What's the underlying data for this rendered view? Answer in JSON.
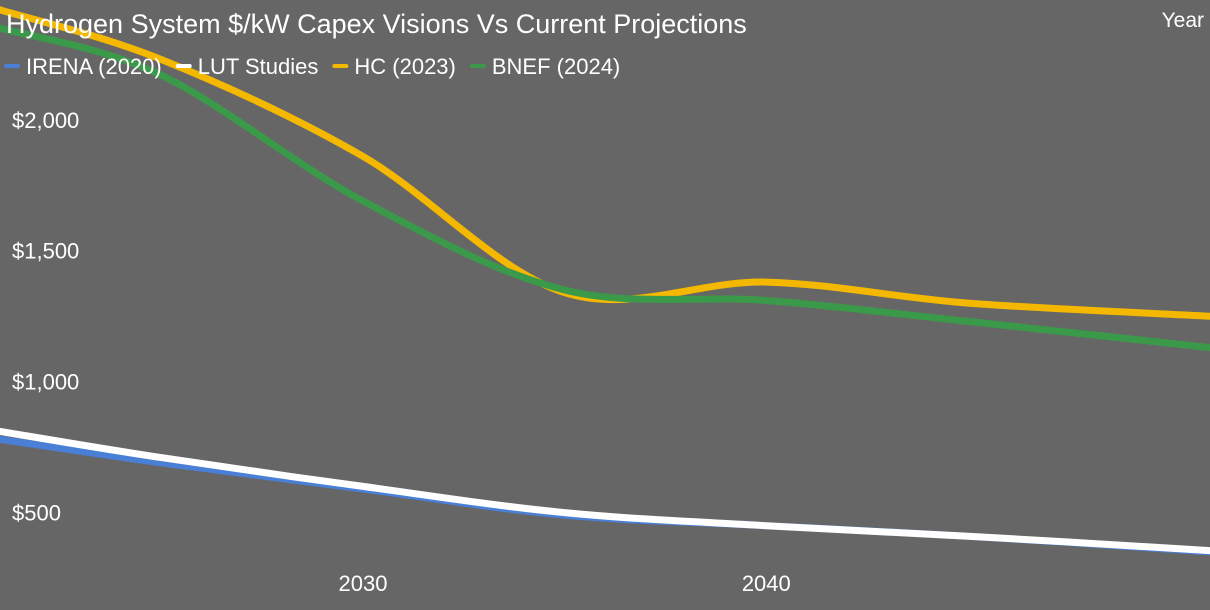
{
  "chart_data": {
    "type": "line",
    "title": "Hydrogen System $/kW Capex Visions Vs Current Projections",
    "xlabel": "Year",
    "ylabel": "",
    "x": [
      2021,
      2025,
      2030,
      2035,
      2040,
      2045,
      2051
    ],
    "xlim": [
      2021,
      2051
    ],
    "ylim": [
      300,
      2400
    ],
    "x_ticks": [
      {
        "value": 2030,
        "label": "2030"
      },
      {
        "value": 2040,
        "label": "2040"
      }
    ],
    "y_ticks": [
      {
        "value": 500,
        "label": "$500"
      },
      {
        "value": 1000,
        "label": "$1,000"
      },
      {
        "value": 1500,
        "label": "$1,500"
      },
      {
        "value": 2000,
        "label": "$2,000"
      }
    ],
    "grid": false,
    "legend_position": "top-left",
    "series": [
      {
        "name": "IRENA (2020)",
        "color": "#4a7fd6",
        "values": [
          780,
          690,
          590,
          490,
          450,
          410,
          350
        ]
      },
      {
        "name": "LUT Studies",
        "color": "#ffffff",
        "values": [
          810,
          710,
          600,
          500,
          450,
          410,
          355
        ]
      },
      {
        "name": "HC (2023)",
        "color": "#f5b800",
        "values": [
          2420,
          2230,
          1860,
          1340,
          1380,
          1300,
          1250
        ]
      },
      {
        "name": "BNEF (2024)",
        "color": "#3a9a4a",
        "values": [
          2350,
          2170,
          1690,
          1350,
          1310,
          1230,
          1130
        ]
      }
    ]
  }
}
